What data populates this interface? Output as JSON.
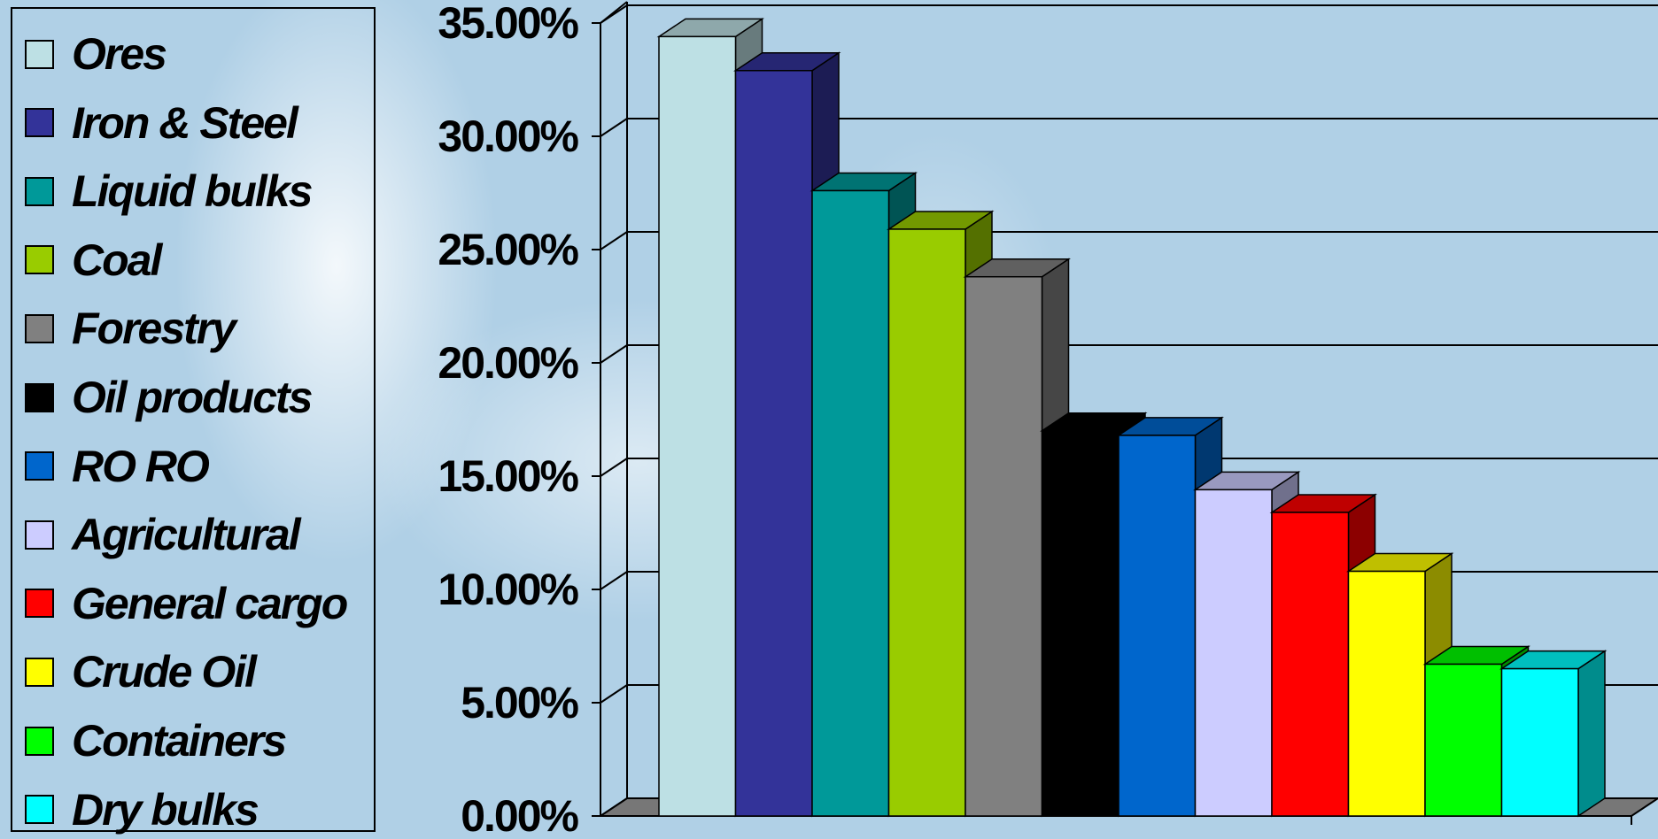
{
  "chart_data": {
    "type": "bar",
    "categories": [
      "Ores",
      "Iron & Steel",
      "Liquid bulks",
      "Coal",
      "Forestry",
      "Oil products",
      "RO RO",
      "Agricultural",
      "General cargo",
      "Crude Oil",
      "Containers",
      "Dry bulks"
    ],
    "values": [
      34.4,
      32.9,
      27.6,
      25.9,
      23.8,
      17.0,
      16.8,
      14.4,
      13.4,
      10.8,
      6.7,
      6.5
    ],
    "colors": [
      "#bde0e4",
      "#333399",
      "#009999",
      "#99cc00",
      "#808080",
      "#000000",
      "#0066cc",
      "#ccccff",
      "#ff0000",
      "#ffff00",
      "#00ff00",
      "#00ffff"
    ],
    "yticks": [
      "0.00%",
      "5.00%",
      "10.00%",
      "15.00%",
      "20.00%",
      "25.00%",
      "30.00%",
      "35.00%"
    ],
    "ylim": [
      0,
      35
    ],
    "grid": true,
    "legend_position": "left",
    "three_d": true,
    "title": "",
    "xlabel": "",
    "ylabel": ""
  }
}
